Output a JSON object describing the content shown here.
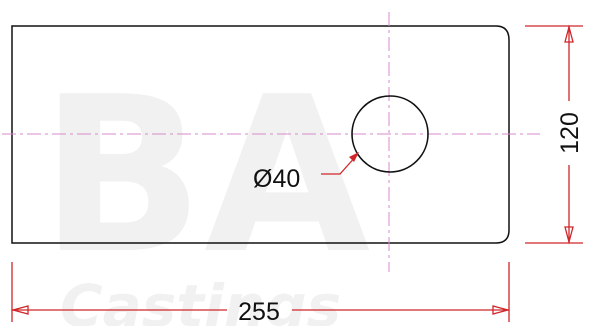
{
  "drawing": {
    "part_shape": "rounded-rectangle-plate",
    "hole_dimension_label": "Ø40",
    "width_dimension_label": "255",
    "height_dimension_label": "120",
    "watermark_text": "BA",
    "watermark_subtext": "Castings",
    "colors": {
      "outline": "#111111",
      "centerline": "#d98acb",
      "dimension": "#d0262a",
      "text": "#111111",
      "watermark": "#f1f1f1",
      "background": "#ffffff"
    }
  }
}
